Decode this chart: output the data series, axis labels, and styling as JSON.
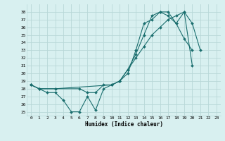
{
  "title": "",
  "xlabel": "Humidex (Indice chaleur)",
  "bg_color": "#d8f0f0",
  "grid_color": "#b8d8d8",
  "line_color": "#1a6e6e",
  "xlim": [
    -0.5,
    23.5
  ],
  "ylim": [
    24.5,
    39.0
  ],
  "yticks": [
    25,
    26,
    27,
    28,
    29,
    30,
    31,
    32,
    33,
    34,
    35,
    36,
    37,
    38
  ],
  "xticks": [
    0,
    1,
    2,
    3,
    4,
    5,
    6,
    7,
    8,
    9,
    10,
    11,
    12,
    13,
    14,
    15,
    16,
    17,
    18,
    19,
    20,
    21,
    22,
    23
  ],
  "line1_x": [
    0,
    1,
    2,
    3,
    4,
    5,
    6,
    7,
    8,
    9,
    10,
    11,
    12,
    13,
    14,
    15,
    16,
    17,
    18,
    19,
    20
  ],
  "line1_y": [
    28.5,
    28.0,
    27.5,
    27.5,
    26.5,
    25.0,
    25.0,
    27.0,
    25.2,
    28.0,
    28.5,
    29.0,
    30.0,
    33.0,
    36.5,
    37.0,
    38.0,
    38.0,
    36.5,
    34.5,
    33.0
  ],
  "line2_x": [
    0,
    1,
    3,
    6,
    7,
    8,
    9,
    10,
    11,
    12,
    13,
    14,
    15,
    16,
    17,
    18,
    19,
    20,
    21
  ],
  "line2_y": [
    28.5,
    28.0,
    28.0,
    28.0,
    27.5,
    27.5,
    28.5,
    28.5,
    29.0,
    30.5,
    32.0,
    33.5,
    35.0,
    36.0,
    37.0,
    37.5,
    38.0,
    36.5,
    33.0
  ],
  "line3_x": [
    0,
    1,
    3,
    10,
    11,
    12,
    13,
    14,
    15,
    16,
    17,
    18,
    19,
    20
  ],
  "line3_y": [
    28.5,
    28.0,
    28.0,
    28.5,
    29.0,
    30.5,
    32.5,
    35.0,
    37.5,
    38.0,
    37.5,
    36.5,
    38.0,
    31.0
  ]
}
